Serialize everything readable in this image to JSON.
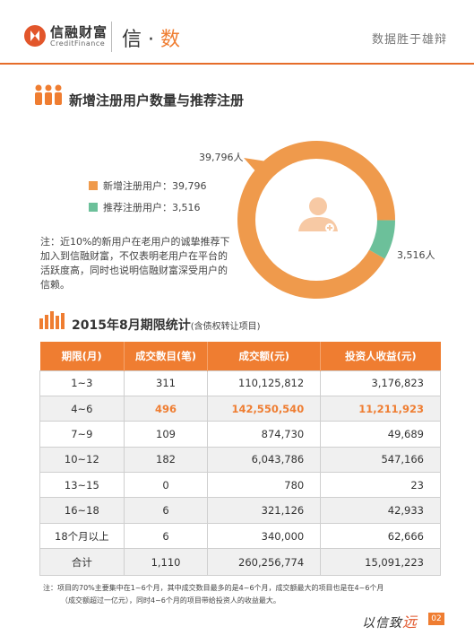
{
  "header": {
    "logo_cn": "信融财富",
    "logo_en": "CreditFinance",
    "title_main": "信 · ",
    "title_accent": "数",
    "slogan": "数据胜于雄辩"
  },
  "section1": {
    "title": "新增注册用户数量与推荐注册",
    "legend": [
      {
        "label": "新增注册用户：39,796",
        "color": "#ef9a4c"
      },
      {
        "label": "推荐注册用户：3,516",
        "color": "#6cc09a"
      }
    ],
    "note": "注：近10%的新用户在老用户的诚挚推荐下加入到信融财富，不仅表明老用户在平台的活跃度高，同时也说明信融财富深受用户的信赖。",
    "label_new": "39,796人",
    "label_rec": "3,516人"
  },
  "chart_data": {
    "type": "pie",
    "categories": [
      "新增注册用户",
      "推荐注册用户"
    ],
    "values": [
      39796,
      3516
    ],
    "colors": [
      "#ef9a4c",
      "#6cc09a"
    ],
    "title": ""
  },
  "section2": {
    "title": "2015年8月期限统计",
    "subtitle": "(含债权转让项目)",
    "columns": [
      "期限(月)",
      "成交数目(笔)",
      "成交额(元)",
      "投资人收益(元)"
    ],
    "rows": [
      [
        "1~3",
        "311",
        "110,125,812",
        "3,176,823"
      ],
      [
        "4~6",
        "496",
        "142,550,540",
        "11,211,923"
      ],
      [
        "7~9",
        "109",
        "874,730",
        "49,689"
      ],
      [
        "10~12",
        "182",
        "6,043,786",
        "547,166"
      ],
      [
        "13~15",
        "0",
        "780",
        "23"
      ],
      [
        "16~18",
        "6",
        "321,126",
        "42,933"
      ],
      [
        "18个月以上",
        "6",
        "340,000",
        "62,666"
      ],
      [
        "合计",
        "1,110",
        "260,256,774",
        "15,091,223"
      ]
    ],
    "note_line1": "注：项目的70%主要集中在1~6个月，其中成交数目最多的是4~6个月，成交额最大的项目也是在4~6个月",
    "note_line2": "（成交额超过一亿元），同时4~6个月的项目带给投资人的收益最大。"
  },
  "footer": {
    "script_text": "以信致",
    "script_accent": "远",
    "page_number": "02"
  }
}
